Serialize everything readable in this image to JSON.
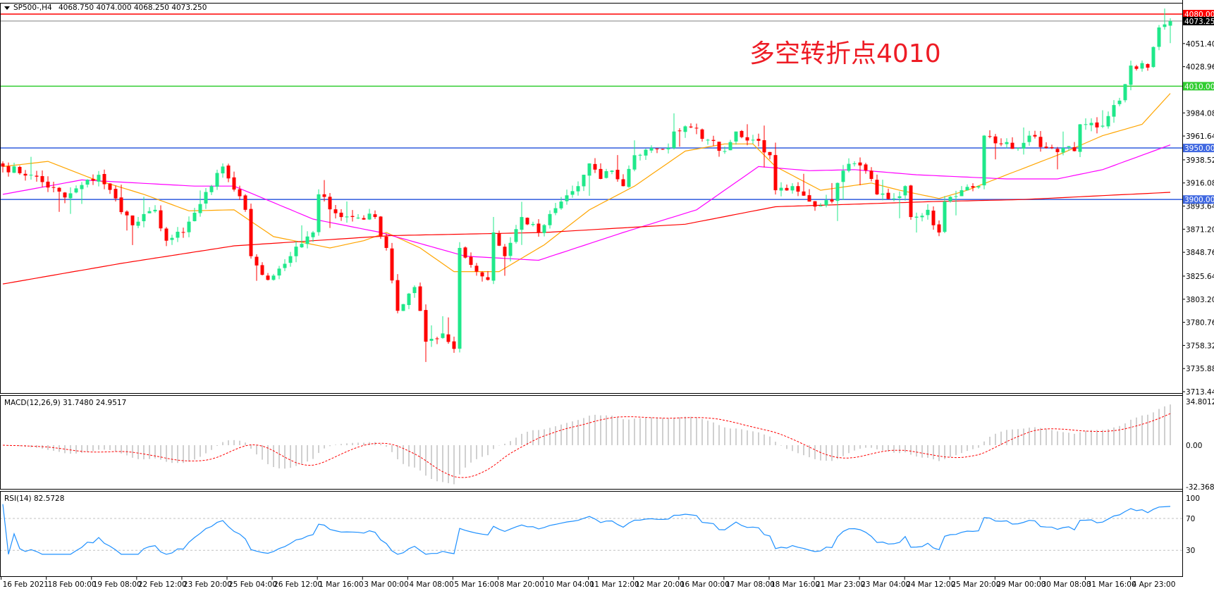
{
  "header": {
    "symbol": "SP500-,H4",
    "ohlc": "4068.750 4074.000 4068.250 4073.250"
  },
  "annotation": "多空转折点4010",
  "colors": {
    "up_candle": "#1fe88a",
    "down_candle": "#ff0000",
    "ma_fast": "#ffa500",
    "ma_mid": "#ff00ff",
    "ma_slow": "#ff0000",
    "macd_hist": "#c0c0c0",
    "macd_signal": "#ff0000",
    "rsi_line": "#1e90ff"
  },
  "chart_data": {
    "type": "candlestick",
    "title": "SP500-,H4",
    "timeframe": "H4",
    "last_close": 4073.25,
    "ylim": [
      3713.44,
      4080.0
    ],
    "grid": false,
    "y_ticks": [
      "4051.400",
      "4028.960",
      "3984.080",
      "3961.640",
      "3938.520",
      "3916.080",
      "3893.640",
      "3871.200",
      "3848.760",
      "3825.640",
      "3803.200",
      "3780.760",
      "3758.320",
      "3735.880",
      "3713.440"
    ],
    "y_tick_values": [
      4051.4,
      4028.96,
      3984.08,
      3961.64,
      3938.52,
      3916.08,
      3893.64,
      3871.2,
      3848.76,
      3825.64,
      3803.2,
      3780.76,
      3758.32,
      3735.88,
      3713.44
    ],
    "x_ticks": [
      "16 Feb 2021",
      "18 Feb 00:00",
      "19 Feb 08:00",
      "22 Feb 12:00",
      "23 Feb 20:00",
      "25 Feb 04:00",
      "26 Feb 12:00",
      "1 Mar 16:00",
      "3 Mar 00:00",
      "4 Mar 08:00",
      "5 Mar 16:00",
      "8 Mar 20:00",
      "10 Mar 04:00",
      "11 Mar 12:00",
      "12 Mar 20:00",
      "16 Mar 00:00",
      "17 Mar 08:00",
      "18 Mar 16:00",
      "21 Mar 23:00",
      "23 Mar 04:00",
      "24 Mar 12:00",
      "25 Mar 20:00",
      "29 Mar 00:00",
      "30 Mar 08:00",
      "31 Mar 16:00",
      "4 Apr 23:00"
    ],
    "bars_per_x_tick": 8,
    "bar_count": 208,
    "close_samples": [
      [
        0,
        3932
      ],
      [
        5,
        3924
      ],
      [
        11,
        3902
      ],
      [
        17,
        3924
      ],
      [
        23,
        3875
      ],
      [
        27,
        3890
      ],
      [
        29,
        3860
      ],
      [
        32,
        3868
      ],
      [
        37,
        3913
      ],
      [
        39,
        3932
      ],
      [
        43,
        3890
      ],
      [
        44,
        3845
      ],
      [
        47,
        3822
      ],
      [
        51,
        3845
      ],
      [
        55,
        3868
      ],
      [
        56,
        3905
      ],
      [
        60,
        3883
      ],
      [
        66,
        3883
      ],
      [
        68,
        3853
      ],
      [
        70,
        3792
      ],
      [
        73,
        3815
      ],
      [
        75,
        3762
      ],
      [
        78,
        3770
      ],
      [
        80,
        3755
      ],
      [
        81,
        3853
      ],
      [
        84,
        3830
      ],
      [
        86,
        3822
      ],
      [
        87,
        3868
      ],
      [
        89,
        3845
      ],
      [
        92,
        3883
      ],
      [
        95,
        3868
      ],
      [
        99,
        3898
      ],
      [
        102,
        3913
      ],
      [
        104,
        3935
      ],
      [
        106,
        3920
      ],
      [
        108,
        3928
      ],
      [
        110,
        3913
      ],
      [
        112,
        3943
      ],
      [
        115,
        3950
      ],
      [
        118,
        3950
      ],
      [
        119,
        3966
      ],
      [
        122,
        3970
      ],
      [
        125,
        3958
      ],
      [
        128,
        3947
      ],
      [
        130,
        3966
      ],
      [
        133,
        3958
      ],
      [
        136,
        3943
      ],
      [
        137,
        3909
      ],
      [
        140,
        3913
      ],
      [
        143,
        3898
      ],
      [
        145,
        3894
      ],
      [
        147,
        3898
      ],
      [
        149,
        3928
      ],
      [
        151,
        3935
      ],
      [
        154,
        3920
      ],
      [
        155,
        3905
      ],
      [
        158,
        3901
      ],
      [
        160,
        3913
      ],
      [
        161,
        3883
      ],
      [
        164,
        3890
      ],
      [
        166,
        3868
      ],
      [
        167,
        3898
      ],
      [
        170,
        3909
      ],
      [
        173,
        3913
      ],
      [
        174,
        3962
      ],
      [
        177,
        3954
      ],
      [
        180,
        3950
      ],
      [
        182,
        3962
      ],
      [
        185,
        3950
      ],
      [
        188,
        3950
      ],
      [
        190,
        3947
      ],
      [
        191,
        3973
      ],
      [
        194,
        3970
      ],
      [
        196,
        3981
      ],
      [
        198,
        3996
      ],
      [
        199,
        4012
      ],
      [
        200,
        4030
      ],
      [
        203,
        4028
      ],
      [
        205,
        4067
      ],
      [
        206,
        4070
      ],
      [
        207,
        4073.25
      ]
    ],
    "moving_averages": [
      {
        "color": "#ffa500",
        "samples": [
          [
            0,
            3932
          ],
          [
            8,
            3937
          ],
          [
            16,
            3920
          ],
          [
            25,
            3905
          ],
          [
            33,
            3889
          ],
          [
            41,
            3890
          ],
          [
            48,
            3864
          ],
          [
            58,
            3853
          ],
          [
            64,
            3860
          ],
          [
            68,
            3868
          ],
          [
            74,
            3853
          ],
          [
            80,
            3830
          ],
          [
            88,
            3830
          ],
          [
            96,
            3856
          ],
          [
            104,
            3890
          ],
          [
            112,
            3913
          ],
          [
            121,
            3947
          ],
          [
            128,
            3954
          ],
          [
            133,
            3954
          ],
          [
            137,
            3932
          ],
          [
            145,
            3909
          ],
          [
            154,
            3916
          ],
          [
            159,
            3909
          ],
          [
            166,
            3901
          ],
          [
            171,
            3909
          ],
          [
            178,
            3924
          ],
          [
            187,
            3943
          ],
          [
            195,
            3962
          ],
          [
            202,
            3973
          ],
          [
            207,
            4003
          ]
        ]
      },
      {
        "color": "#ff00ff",
        "samples": [
          [
            0,
            3905
          ],
          [
            14,
            3919
          ],
          [
            34,
            3913
          ],
          [
            41,
            3913
          ],
          [
            55,
            3881
          ],
          [
            67,
            3868
          ],
          [
            82,
            3845
          ],
          [
            95,
            3841
          ],
          [
            110,
            3868
          ],
          [
            123,
            3890
          ],
          [
            134,
            3932
          ],
          [
            143,
            3928
          ],
          [
            151,
            3929
          ],
          [
            162,
            3924
          ],
          [
            178,
            3920
          ],
          [
            187,
            3920
          ],
          [
            195,
            3929
          ],
          [
            207,
            3953
          ]
        ]
      },
      {
        "color": "#ff0000",
        "samples": [
          [
            0,
            3818
          ],
          [
            21,
            3838
          ],
          [
            41,
            3855
          ],
          [
            69,
            3865
          ],
          [
            96,
            3868
          ],
          [
            121,
            3876
          ],
          [
            137,
            3893
          ],
          [
            165,
            3898
          ],
          [
            181,
            3900
          ],
          [
            207,
            3907
          ]
        ]
      }
    ],
    "horizontal_lines": [
      {
        "price": 4080.0,
        "label": "4080.000",
        "color": "#ff0000"
      },
      {
        "price": 4073.25,
        "label": "4073.250",
        "color": "#808080",
        "tag_color": "#000000"
      },
      {
        "price": 4010.0,
        "label": "4010.000",
        "color": "#32cd32"
      },
      {
        "price": 3950.0,
        "label": "3950.000",
        "color": "#4169e1"
      },
      {
        "price": 3900.0,
        "label": "3900.000",
        "color": "#4169e1"
      }
    ],
    "macd": {
      "label": "MACD(12,26,9) 31.7480 24.9517",
      "params": [
        12,
        26,
        9
      ],
      "main": 31.748,
      "signal": 24.9517,
      "ylim": [
        -32.3687,
        34.8012
      ],
      "y_ticks": [
        "34.8012",
        "0.00",
        "-32.3687"
      ],
      "y_tick_values": [
        34.8012,
        0,
        -32.3687
      ]
    },
    "rsi": {
      "label": "RSI(14) 82.5728",
      "period": 14,
      "value": 82.5728,
      "levels": [
        70,
        30
      ],
      "y_ticks": [
        "100",
        "70",
        "30"
      ],
      "y_tick_values": [
        100,
        70,
        30
      ]
    }
  }
}
